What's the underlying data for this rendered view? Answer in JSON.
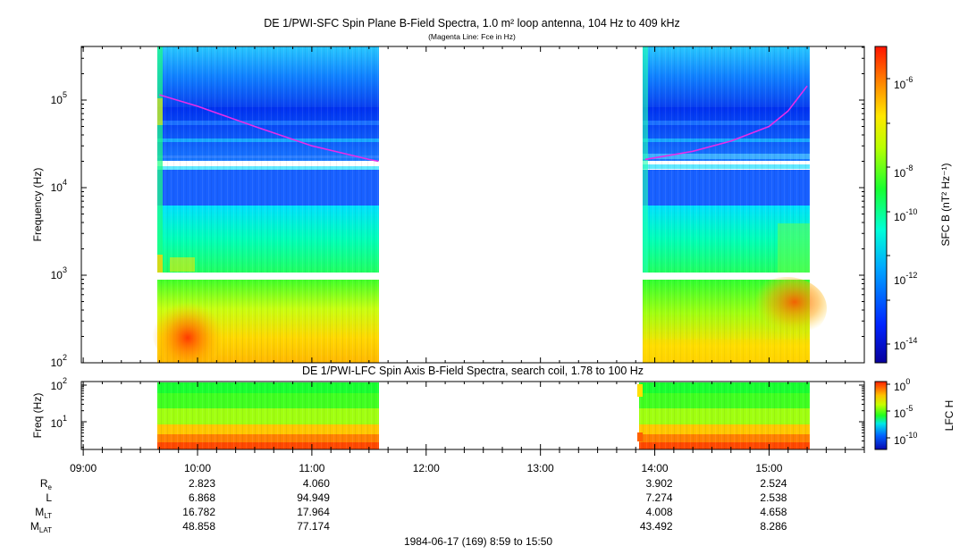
{
  "chart_data": [
    {
      "type": "heatmap",
      "title": "DE 1/PWI-SFC  Spin Plane B-Field Spectra, 1.0 m² loop antenna, 104 Hz to 409 kHz",
      "subtitle": "(Magenta Line: Fce in Hz)",
      "ylabel": "Frequency (Hz)",
      "yscale": "log",
      "ylim": [
        100,
        409000
      ],
      "y_ticks": [
        {
          "base": "10",
          "exp": "2"
        },
        {
          "base": "10",
          "exp": "3"
        },
        {
          "base": "10",
          "exp": "4"
        },
        {
          "base": "10",
          "exp": "5"
        }
      ],
      "colorbar_label": "SFC B (nT² Hz⁻¹)",
      "colorbar_range": [
        1e-15,
        1e-05
      ],
      "colorbar_ticks": [
        {
          "base": "10",
          "exp": "-6"
        },
        {
          "base": "10",
          "exp": "-8"
        },
        {
          "base": "10",
          "exp": "-10"
        },
        {
          "base": "10",
          "exp": "-12"
        },
        {
          "base": "10",
          "exp": "-14"
        }
      ],
      "data_intervals": [
        {
          "start": "09:40",
          "end": "11:35"
        },
        {
          "start": "13:55",
          "end": "15:20"
        }
      ],
      "fce_line": {
        "color": "#e82ce8",
        "segments": [
          {
            "times": [
              "09:40",
              "10:00",
              "10:30",
              "11:00",
              "11:30",
              "11:35"
            ],
            "freq_hz": [
              115000,
              85000,
              50000,
              30000,
              21000,
              20000
            ]
          },
          {
            "times": [
              "13:55",
              "14:20",
              "14:40",
              "15:00",
              "15:10",
              "15:20"
            ],
            "freq_hz": [
              21000,
              26000,
              34000,
              50000,
              75000,
              145000
            ]
          }
        ]
      }
    },
    {
      "type": "heatmap",
      "title": "DE 1/PWI-LFC  Spin Axis B-Field Spectra, search coil, 1.78 to 100 Hz",
      "ylabel": "Freq (Hz)",
      "yscale": "log",
      "ylim": [
        1.78,
        100
      ],
      "y_ticks": [
        {
          "base": "10",
          "exp": "1"
        },
        {
          "base": "10",
          "exp": "2"
        }
      ],
      "colorbar_label": "LFC H",
      "colorbar_ticks": [
        {
          "base": "10",
          "exp": "0"
        },
        {
          "base": "10",
          "exp": "-5"
        },
        {
          "base": "10",
          "exp": "-10"
        }
      ],
      "data_intervals": [
        {
          "start": "09:40",
          "end": "11:35"
        },
        {
          "start": "13:55",
          "end": "15:20"
        }
      ]
    }
  ],
  "x_axis": {
    "range": [
      "08:59",
      "15:50"
    ],
    "ticks": [
      "09:00",
      "10:00",
      "11:00",
      "12:00",
      "13:00",
      "14:00",
      "15:00"
    ]
  },
  "ephemeris": {
    "rows": [
      {
        "main": "R",
        "sub": "e",
        "values": [
          "2.823",
          "4.060",
          "",
          "",
          "3.902",
          "2.524"
        ]
      },
      {
        "main": "L",
        "sub": "",
        "values": [
          "6.868",
          "94.949",
          "",
          "",
          "7.274",
          "2.538"
        ]
      },
      {
        "main": "M",
        "sub": "LT",
        "values": [
          "16.782",
          "17.964",
          "",
          "",
          "4.008",
          "4.658"
        ]
      },
      {
        "main": "M",
        "sub": "LAT",
        "values": [
          "48.858",
          "77.174",
          "",
          "",
          "43.492",
          "8.286"
        ]
      }
    ],
    "columns": [
      "10:00",
      "11:00",
      "12:00",
      "13:00",
      "14:00",
      "15:00"
    ]
  },
  "footer": "1984-06-17 (169) 8:59 to 15:50"
}
